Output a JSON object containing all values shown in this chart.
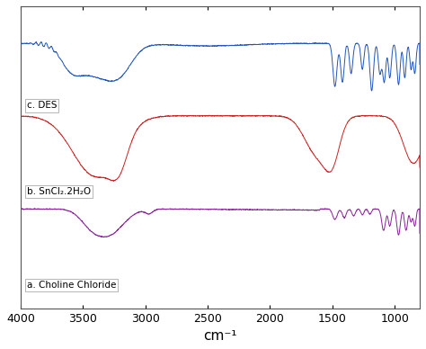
{
  "xmin": 800,
  "xmax": 4000,
  "xlabel": "cm⁻¹",
  "xticks": [
    4000,
    3500,
    3000,
    2500,
    2000,
    1500,
    1000
  ],
  "colors": {
    "blue": "#2255bb",
    "red": "#cc2222",
    "purple": "#882299"
  },
  "labels": {
    "a": "a. Choline Chloride",
    "b": "b. SnCl₂.2H₂O",
    "c": "c. DES"
  },
  "background": "#ffffff",
  "border_color": "#888888"
}
